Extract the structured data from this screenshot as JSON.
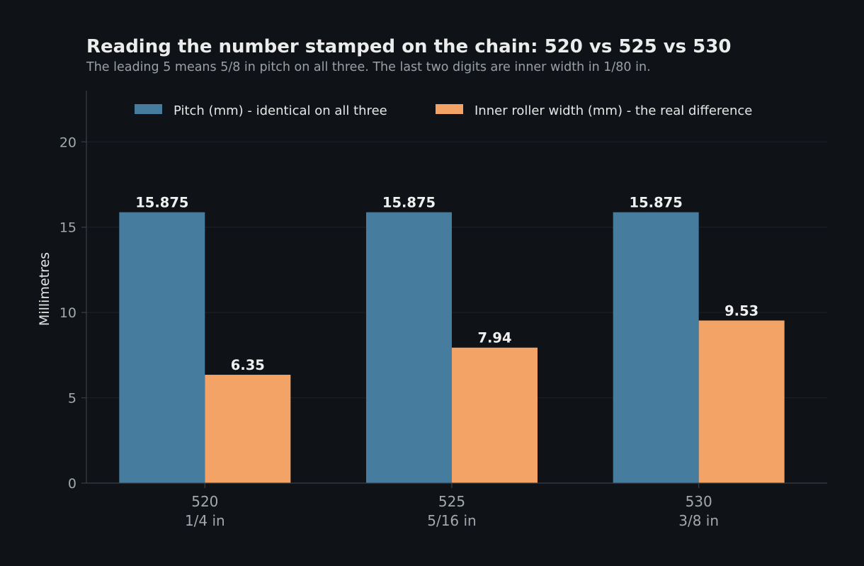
{
  "chart_data": {
    "type": "bar",
    "title": "Reading the number stamped on the chain: 520 vs 525 vs 530",
    "subtitle": "The leading 5 means 5/8 in pitch on all three. The last two digits are inner width in 1/80 in.",
    "ylabel": "Millimetres",
    "xlabel": "",
    "ylim": [
      0,
      23
    ],
    "yticks": [
      0,
      5,
      10,
      15,
      20
    ],
    "grid": true,
    "legend_position": "top",
    "categories": [
      {
        "name": "520",
        "sub": "1/4 in"
      },
      {
        "name": "525",
        "sub": "5/16 in"
      },
      {
        "name": "530",
        "sub": "3/8 in"
      }
    ],
    "series": [
      {
        "name": "Pitch (mm) - identical on all three",
        "color": "#467d9f",
        "values": [
          15.875,
          15.875,
          15.875
        ],
        "labels": [
          "15.875",
          "15.875",
          "15.875"
        ]
      },
      {
        "name": "Inner roller width (mm) - the real difference",
        "color": "#f2a365",
        "values": [
          6.35,
          7.94,
          9.53
        ],
        "labels": [
          "6.35",
          "7.94",
          "9.53"
        ]
      }
    ],
    "colors": {
      "background": "#0f1317",
      "grid": "#1e2328",
      "axis": "#3a3f45"
    }
  }
}
